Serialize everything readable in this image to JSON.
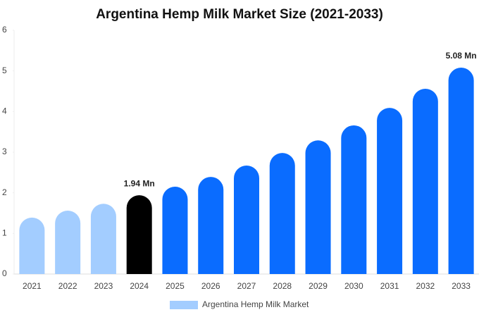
{
  "chart_data": {
    "type": "bar",
    "title": "Argentina Hemp Milk Market Size (2021-2033)",
    "categories": [
      "2021",
      "2022",
      "2023",
      "2024",
      "2025",
      "2026",
      "2027",
      "2028",
      "2029",
      "2030",
      "2031",
      "2032",
      "2033"
    ],
    "series": [
      {
        "name": "Argentina Hemp Milk Market",
        "color": "#a3cdff",
        "values": [
          1.39,
          1.56,
          1.73,
          1.94,
          2.15,
          2.39,
          2.67,
          2.98,
          3.29,
          3.66,
          4.09,
          4.56,
          5.08
        ],
        "value_labels": [
          null,
          null,
          null,
          "1.94 Mn",
          null,
          null,
          null,
          null,
          null,
          null,
          null,
          null,
          "5.08 Mn"
        ],
        "colors": [
          "#a3cdff",
          "#a3cdff",
          "#a3cdff",
          "#000000",
          "#0a6cff",
          "#0a6cff",
          "#0a6cff",
          "#0a6cff",
          "#0a6cff",
          "#0a6cff",
          "#0a6cff",
          "#0a6cff",
          "#0a6cff"
        ]
      }
    ],
    "ylim": [
      0,
      6
    ],
    "yticks": [
      0,
      1,
      2,
      3,
      4,
      5,
      6
    ],
    "grid": false,
    "legend": "bottom"
  }
}
